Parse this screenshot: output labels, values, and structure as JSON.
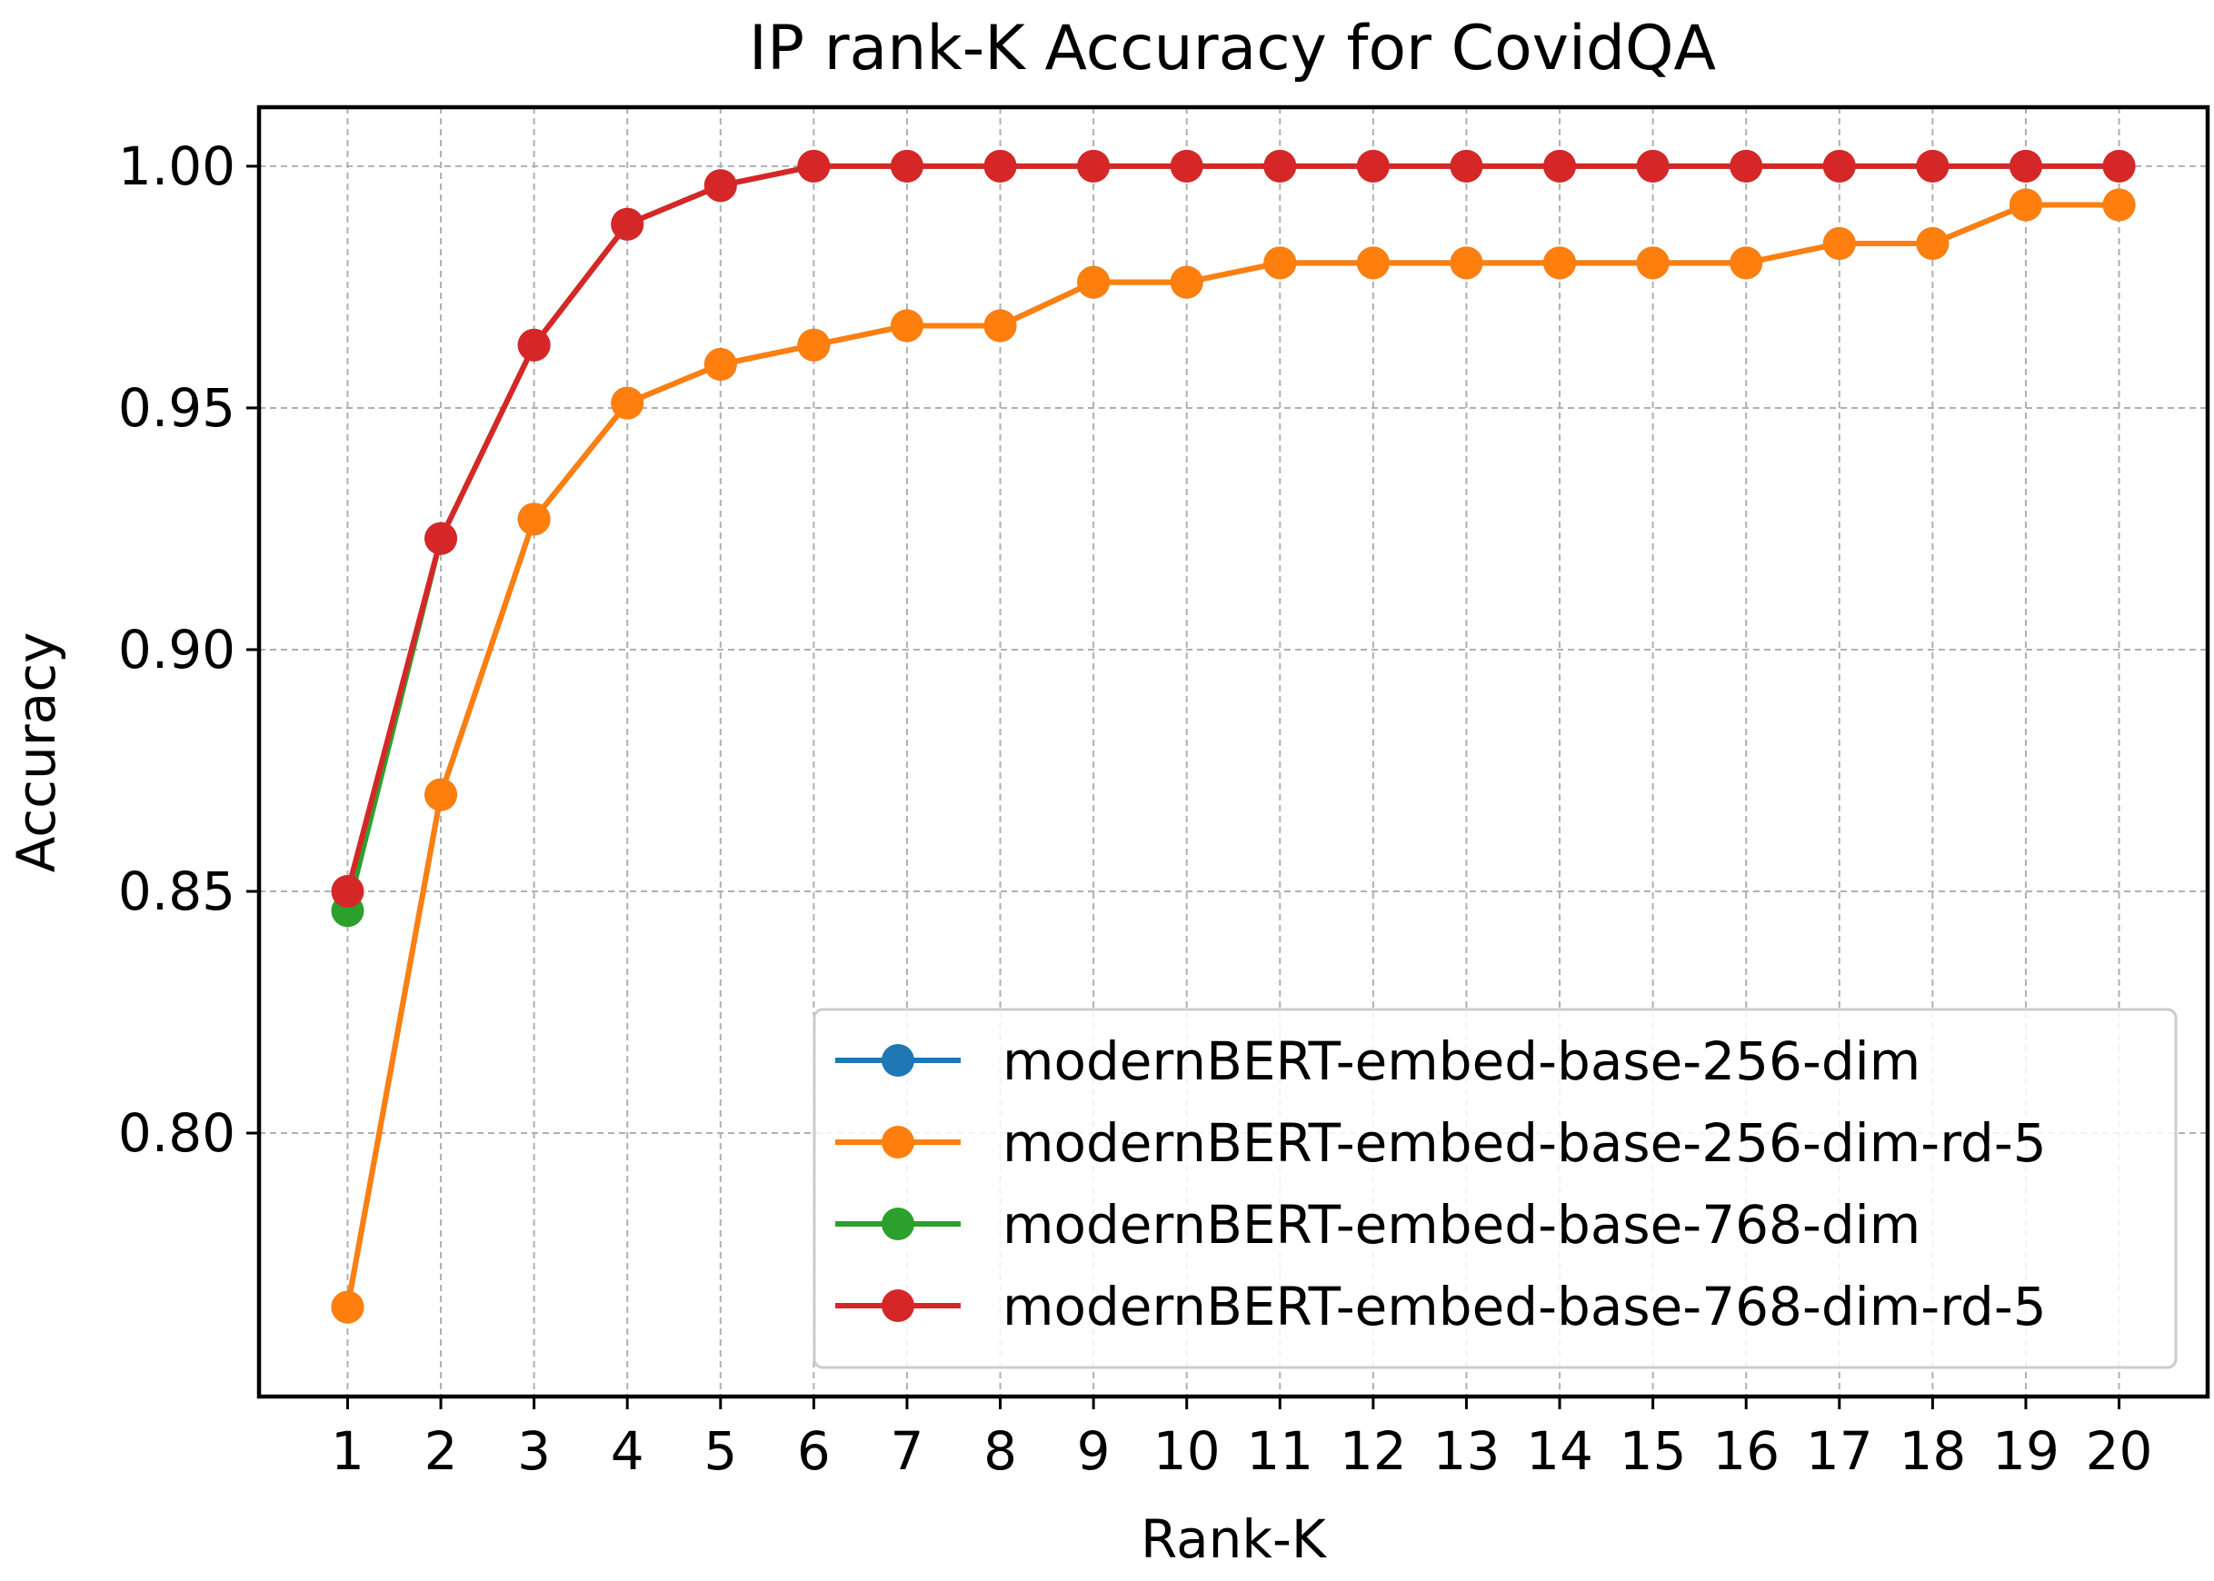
{
  "chart_data": {
    "type": "line",
    "title": "IP rank-K Accuracy for CovidQA",
    "xlabel": "Rank-K",
    "ylabel": "Accuracy",
    "x": [
      1,
      2,
      3,
      4,
      5,
      6,
      7,
      8,
      9,
      10,
      11,
      12,
      13,
      14,
      15,
      16,
      17,
      18,
      19,
      20
    ],
    "xlim": [
      0.05,
      20.95
    ],
    "ylim": [
      0.7455,
      1.0122
    ],
    "yticks": [
      "0.80",
      "0.85",
      "0.90",
      "0.95",
      "1.00"
    ],
    "ytick_values": [
      0.8,
      0.85,
      0.9,
      0.95,
      1.0
    ],
    "grid": true,
    "legend_position": "lower-right",
    "series": [
      {
        "name": "modernBERT-embed-base-256-dim",
        "color": "#1f77b4",
        "values": [
          0.764,
          0.87,
          0.927,
          0.951,
          0.959,
          0.963,
          0.967,
          0.967,
          0.976,
          0.976,
          0.98,
          0.98,
          0.98,
          0.98,
          0.98,
          0.98,
          0.984,
          0.984,
          0.992,
          0.992
        ]
      },
      {
        "name": "modernBERT-embed-base-256-dim-rd-5",
        "color": "#ff7f0e",
        "values": [
          0.764,
          0.87,
          0.927,
          0.951,
          0.959,
          0.963,
          0.967,
          0.967,
          0.976,
          0.976,
          0.98,
          0.98,
          0.98,
          0.98,
          0.98,
          0.98,
          0.984,
          0.984,
          0.992,
          0.992
        ]
      },
      {
        "name": "modernBERT-embed-base-768-dim",
        "color": "#2ca02c",
        "values": [
          0.846,
          0.923,
          0.963,
          0.988,
          0.996,
          1.0,
          1.0,
          1.0,
          1.0,
          1.0,
          1.0,
          1.0,
          1.0,
          1.0,
          1.0,
          1.0,
          1.0,
          1.0,
          1.0,
          1.0
        ]
      },
      {
        "name": "modernBERT-embed-base-768-dim-rd-5",
        "color": "#d62728",
        "values": [
          0.85,
          0.923,
          0.963,
          0.988,
          0.996,
          1.0,
          1.0,
          1.0,
          1.0,
          1.0,
          1.0,
          1.0,
          1.0,
          1.0,
          1.0,
          1.0,
          1.0,
          1.0,
          1.0,
          1.0
        ]
      }
    ]
  }
}
